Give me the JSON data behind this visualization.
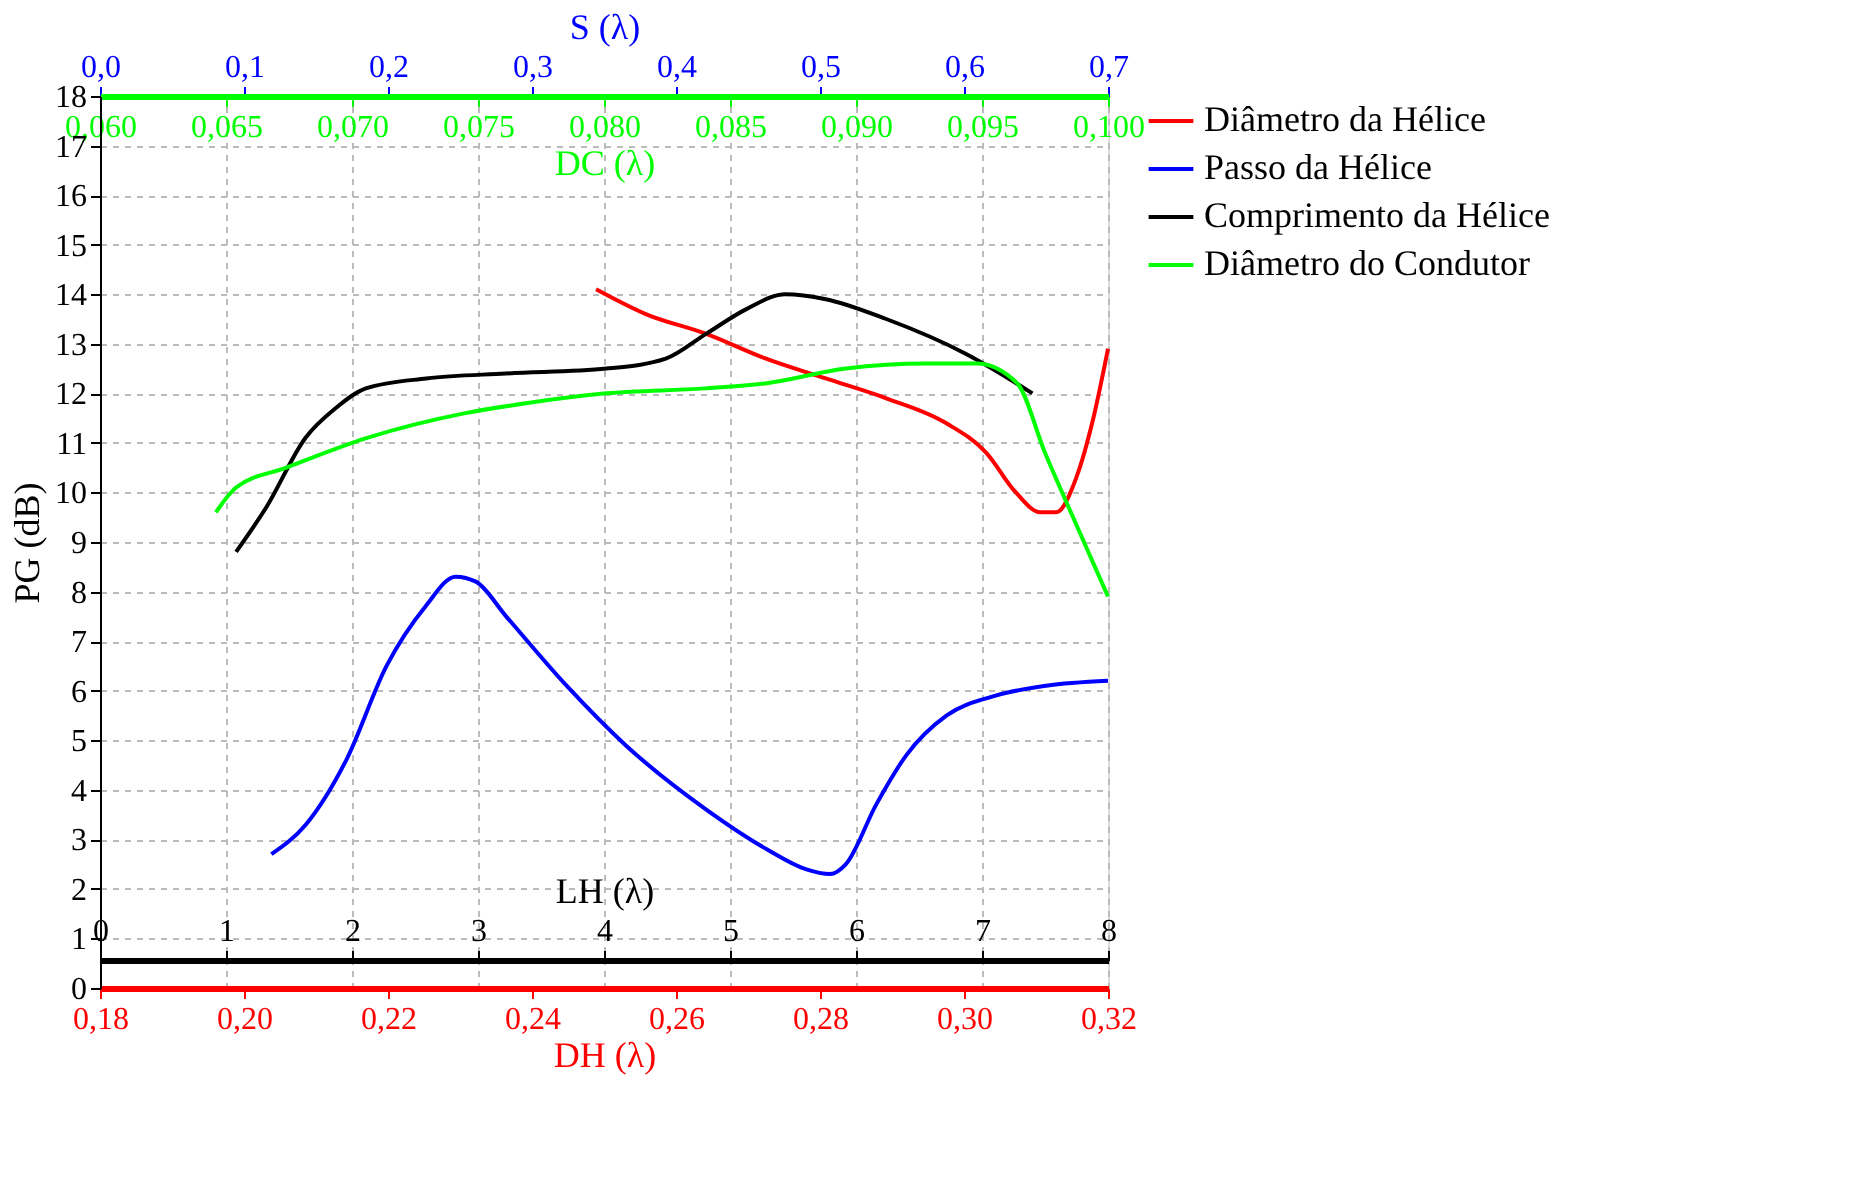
{
  "chart_data": [
    {
      "type": "line",
      "xlabel": "DH (λ)",
      "x2label": "S (λ)",
      "ylabel": "PG (dB)",
      "xlim": [
        0.18,
        0.32
      ],
      "xticks": [
        {
          "value": 0.18,
          "label": "0,18"
        },
        {
          "value": 0.2,
          "label": "0,20"
        },
        {
          "value": 0.22,
          "label": "0,22"
        },
        {
          "value": 0.24,
          "label": "0,24"
        },
        {
          "value": 0.26,
          "label": "0,26"
        },
        {
          "value": 0.28,
          "label": "0,28"
        },
        {
          "value": 0.3,
          "label": "0,30"
        },
        {
          "value": 0.32,
          "label": "0,32"
        }
      ],
      "x2lim": [
        0,
        0.7
      ],
      "x2ticks": [
        {
          "value": 0,
          "label": "0,0"
        },
        {
          "value": 0.1,
          "label": "0,1"
        },
        {
          "value": 0.2,
          "label": "0,2"
        },
        {
          "value": 0.3,
          "label": "0,3"
        },
        {
          "value": 0.4,
          "label": "0,4"
        },
        {
          "value": 0.5,
          "label": "0,5"
        },
        {
          "value": 0.6,
          "label": "0,6"
        },
        {
          "value": 0.7,
          "label": "0,7"
        }
      ],
      "ylim": [
        0,
        18
      ],
      "yticks": [
        0,
        1,
        2,
        3,
        4,
        5,
        6,
        7,
        8,
        9,
        10,
        11,
        12,
        13,
        14,
        15,
        16,
        17,
        18
      ],
      "grid": "y",
      "legend": "right",
      "line_style": "solid",
      "series": [
        {
          "name": "Diâmetro da Hélice",
          "color": "#ff0000",
          "x": [
            0.2489,
            0.2558,
            0.2642,
            0.2725,
            0.2808,
            0.2892,
            0.2975,
            0.3031,
            0.3072,
            0.3106,
            0.3128,
            0.3156,
            0.3178,
            0.32
          ],
          "values": [
            14.1,
            13.6,
            13.2,
            12.7,
            12.3,
            11.9,
            11.4,
            10.8,
            10.0,
            9.6,
            9.6,
            10.3,
            11.4,
            12.9
          ]
        },
        {
          "name": "Passo da Hélice",
          "color": "#0000ff",
          "axis": "x2",
          "x": [
            0.119,
            0.143,
            0.171,
            0.199,
            0.226,
            0.247,
            0.261,
            0.282,
            0.324,
            0.365,
            0.421,
            0.463,
            0.49,
            0.507,
            0.518,
            0.539,
            0.56,
            0.588,
            0.622,
            0.657,
            0.7
          ],
          "values": [
            2.7,
            3.3,
            4.6,
            6.5,
            7.7,
            8.3,
            8.2,
            7.5,
            6.1,
            4.9,
            3.6,
            2.8,
            2.4,
            2.3,
            2.5,
            3.7,
            4.7,
            5.5,
            5.9,
            6.1,
            6.2
          ]
        }
      ]
    },
    {
      "type": "line",
      "xlabel": "LH (λ)",
      "x2label": "DC (λ)",
      "xlim": [
        0,
        8
      ],
      "xticks": [
        0,
        1,
        2,
        3,
        4,
        5,
        6,
        7,
        8
      ],
      "x2lim": [
        0.06,
        0.1
      ],
      "x2ticks": [
        {
          "value": 0.06,
          "label": "0,060"
        },
        {
          "value": 0.065,
          "label": "0,065"
        },
        {
          "value": 0.07,
          "label": "0,070"
        },
        {
          "value": 0.075,
          "label": "0,075"
        },
        {
          "value": 0.08,
          "label": "0,080"
        },
        {
          "value": 0.085,
          "label": "0,085"
        },
        {
          "value": 0.09,
          "label": "0,090"
        },
        {
          "value": 0.095,
          "label": "0,095"
        },
        {
          "value": 0.1,
          "label": "0,100"
        }
      ],
      "ylim": [
        0,
        18
      ],
      "grid": "x",
      "legend": "right",
      "line_style": "solid",
      "series": [
        {
          "name": "Comprimento da Hélice",
          "color": "#000000",
          "x": [
            1.08,
            1.32,
            1.63,
            1.87,
            2.11,
            2.59,
            3.22,
            4.02,
            4.49,
            4.81,
            5.13,
            5.44,
            5.76,
            6.24,
            6.87,
            7.4
          ],
          "values": [
            8.8,
            9.7,
            11.1,
            11.7,
            12.1,
            12.3,
            12.4,
            12.5,
            12.7,
            13.2,
            13.7,
            14.0,
            13.9,
            13.5,
            12.8,
            12.0
          ]
        },
        {
          "name": "Diâmetro do Condutor",
          "color": "#00ff00",
          "axis": "x2",
          "x": [
            0.0646,
            0.0654,
            0.0674,
            0.0706,
            0.0745,
            0.0769,
            0.0801,
            0.084,
            0.0864,
            0.0896,
            0.0928,
            0.0948,
            0.0964,
            0.0975,
            0.0987,
            0.1
          ],
          "values": [
            9.6,
            10.1,
            10.5,
            11.1,
            11.6,
            11.8,
            12.0,
            12.1,
            12.2,
            12.5,
            12.6,
            12.6,
            12.2,
            10.8,
            9.4,
            7.9
          ]
        }
      ]
    }
  ]
}
